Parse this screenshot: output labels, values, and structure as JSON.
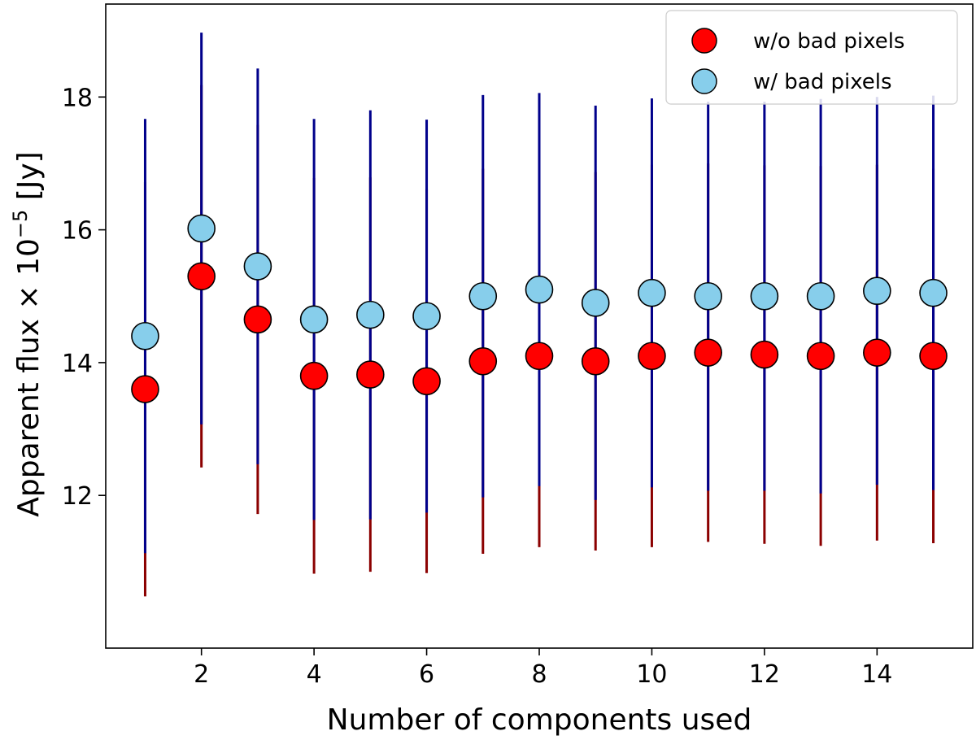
{
  "chart_data": {
    "type": "scatter",
    "title": "",
    "xlabel": "Number of components used",
    "ylabel_text": "Apparent flux ",
    "ylabel_times": "×",
    "ylabel_base": "10",
    "ylabel_exp": "−5",
    "ylabel_unit": "[Jy]",
    "xlim": [
      0.3,
      15.7
    ],
    "ylim": [
      9.7,
      19.4
    ],
    "xticks": [
      2,
      4,
      6,
      8,
      10,
      12,
      14
    ],
    "yticks": [
      12,
      14,
      16,
      18
    ],
    "x": [
      1,
      2,
      3,
      4,
      5,
      6,
      7,
      8,
      9,
      10,
      11,
      12,
      13,
      14,
      15
    ],
    "series": [
      {
        "name": "w/o bad pixels",
        "marker_color": "#ff0000",
        "errorbar_color": "#8b0000",
        "values": [
          13.6,
          15.3,
          14.65,
          13.8,
          13.82,
          13.72,
          14.02,
          14.1,
          14.02,
          14.1,
          14.15,
          14.12,
          14.1,
          14.15,
          14.1
        ],
        "lower": [
          10.48,
          12.42,
          11.72,
          10.82,
          10.85,
          10.83,
          11.12,
          11.22,
          11.17,
          11.22,
          11.3,
          11.27,
          11.24,
          11.32,
          11.28
        ],
        "upper": [
          16.72,
          18.18,
          17.58,
          16.78,
          16.79,
          16.61,
          16.92,
          16.98,
          16.87,
          16.98,
          17.0,
          16.97,
          16.96,
          16.98,
          16.92
        ]
      },
      {
        "name": "w/ bad pixels",
        "marker_color": "#87ceeb",
        "errorbar_color": "#00008b",
        "values": [
          14.4,
          16.02,
          15.45,
          14.65,
          14.72,
          14.7,
          15.0,
          15.1,
          14.9,
          15.05,
          15.0,
          15.0,
          15.0,
          15.08,
          15.05
        ],
        "lower": [
          11.13,
          13.07,
          12.47,
          11.63,
          11.64,
          11.74,
          11.97,
          12.14,
          11.93,
          12.12,
          12.07,
          12.07,
          12.03,
          12.16,
          12.08
        ],
        "upper": [
          17.67,
          18.97,
          18.43,
          17.67,
          17.8,
          17.66,
          18.03,
          18.06,
          17.87,
          17.98,
          17.93,
          17.93,
          17.97,
          18.0,
          18.02
        ]
      }
    ],
    "legend_position": "top-right"
  }
}
